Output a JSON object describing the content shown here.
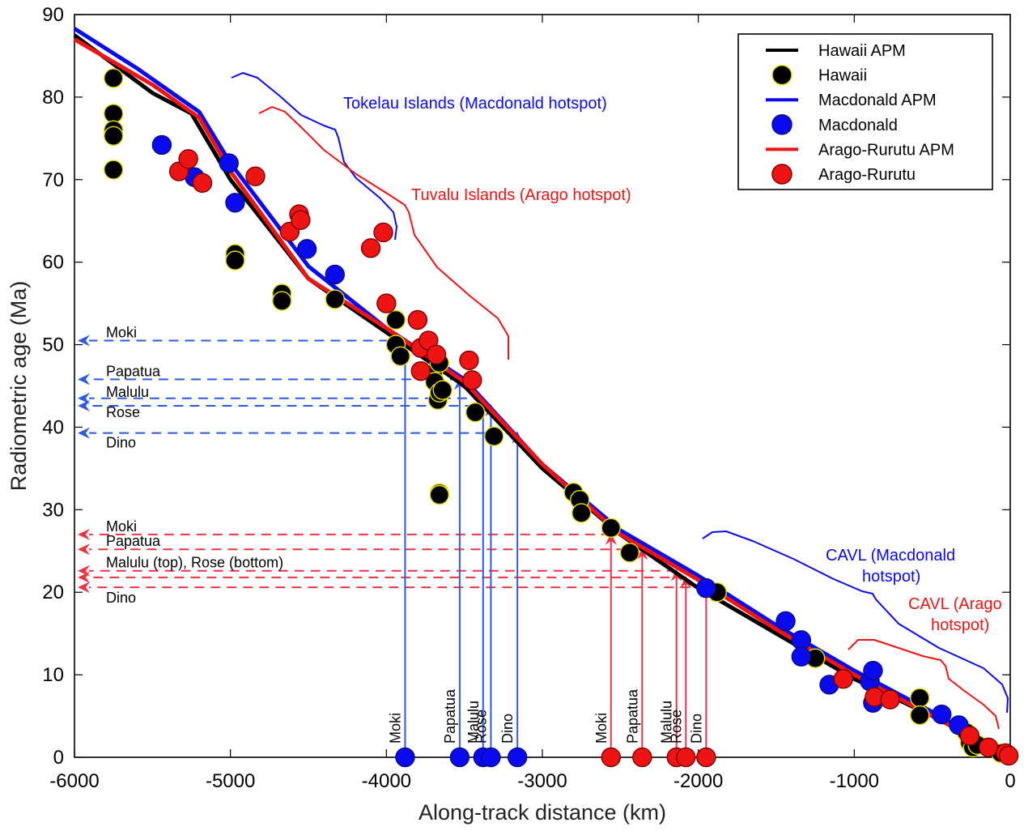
{
  "chart_data": {
    "type": "scatter",
    "xlabel": "Along-track distance (km)",
    "ylabel": "Radiometric age (Ma)",
    "xlim": [
      -6000,
      0
    ],
    "ylim": [
      0,
      90
    ],
    "xticks": [
      -6000,
      -5000,
      -4000,
      -3000,
      -2000,
      -1000,
      0
    ],
    "yticks": [
      0,
      10,
      20,
      30,
      40,
      50,
      60,
      70,
      80,
      90
    ],
    "legend_position": "top-right",
    "colors": {
      "hawaii_line": "#000000",
      "hawaii_marker": "#000000",
      "hawaii_edge": "#e8e000",
      "macdonald": "#0a0aef",
      "macdonald_edge": "#0a0a80",
      "arago": "#ef1414",
      "arago_edge": "#7a0000",
      "blue_annotation": "#2f5be0",
      "red_annotation": "#ef3345"
    },
    "legend": [
      {
        "label": "Hawaii APM",
        "kind": "line",
        "color": "#000000"
      },
      {
        "label": "Hawaii",
        "kind": "marker",
        "color": "#000000",
        "edge": "#e8e000"
      },
      {
        "label": "Macdonald APM",
        "kind": "line",
        "color": "#0a0aef"
      },
      {
        "label": "Macdonald",
        "kind": "marker",
        "color": "#0a0aef",
        "edge": "#0a0a80"
      },
      {
        "label": "Arago-Rurutu APM",
        "kind": "line",
        "color": "#ef1414"
      },
      {
        "label": "Arago-Rurutu",
        "kind": "marker",
        "color": "#ef1414",
        "edge": "#7a0000"
      }
    ],
    "apm_lines": [
      {
        "name": "Hawaii APM",
        "color": "#000000",
        "x": [
          -6000,
          -5500,
          -5250,
          -5000,
          -4500,
          -4000,
          -3500,
          -3000,
          -2500,
          -2000,
          -1500,
          -1000,
          -500,
          0
        ],
        "y": [
          87.5,
          80.5,
          78,
          70,
          58,
          51.5,
          45,
          35,
          27,
          20.5,
          15,
          9.5,
          5,
          0
        ]
      },
      {
        "name": "Macdonald APM",
        "color": "#0a0aef",
        "x": [
          -6000,
          -5600,
          -5200,
          -5000,
          -4500,
          -4000,
          -3500,
          -3000,
          -2500,
          -2000,
          -1500,
          -1000,
          -500,
          0
        ],
        "y": [
          88.3,
          83.5,
          78.2,
          72,
          59.5,
          52,
          45.8,
          35.5,
          27.5,
          22,
          16,
          10.5,
          5.5,
          0
        ]
      },
      {
        "name": "Arago-Rurutu APM",
        "color": "#ef1414",
        "x": [
          -6000,
          -5500,
          -5200,
          -5000,
          -4500,
          -4000,
          -3500,
          -3000,
          -2500,
          -2000,
          -1500,
          -1000,
          -500,
          0
        ],
        "y": [
          87,
          81.5,
          77.5,
          71,
          58,
          52,
          45.5,
          35.5,
          27,
          21.5,
          15.5,
          10,
          5,
          0
        ]
      }
    ],
    "series": [
      {
        "name": "Hawaii",
        "color": "#000000",
        "edge": "#e8e000",
        "points": [
          [
            -5750,
            82.3
          ],
          [
            -5750,
            78
          ],
          [
            -5750,
            76
          ],
          [
            -5750,
            75.3
          ],
          [
            -5750,
            71.2
          ],
          [
            -4970,
            61
          ],
          [
            -4970,
            60.2
          ],
          [
            -4670,
            56.2
          ],
          [
            -4670,
            55.3
          ],
          [
            -4330,
            55.5
          ],
          [
            -3940,
            53
          ],
          [
            -3940,
            50
          ],
          [
            -3910,
            48.6
          ],
          [
            -3700,
            46.5
          ],
          [
            -3690,
            45.5
          ],
          [
            -3660,
            47.8
          ],
          [
            -3670,
            43.3
          ],
          [
            -3660,
            44.2
          ],
          [
            -3640,
            44.5
          ],
          [
            -3430,
            41.8
          ],
          [
            -3310,
            38.9
          ],
          [
            -3660,
            32
          ],
          [
            -3660,
            31.8
          ],
          [
            -2800,
            32.1
          ],
          [
            -2760,
            31.2
          ],
          [
            -2750,
            29.6
          ],
          [
            -2560,
            27.8
          ],
          [
            -2440,
            24.8
          ],
          [
            -1880,
            20
          ],
          [
            -1250,
            12
          ],
          [
            -580,
            7.2
          ],
          [
            -580,
            5.1
          ],
          [
            -280,
            3
          ],
          [
            -260,
            1.8
          ],
          [
            -240,
            1.2
          ],
          [
            -210,
            1.5
          ],
          [
            -60,
            0.5
          ],
          [
            -20,
            0.3
          ]
        ]
      },
      {
        "name": "Macdonald",
        "color": "#0a0aef",
        "edge": "#0a0a80",
        "points": [
          [
            -5440,
            74.2
          ],
          [
            -5230,
            70.3
          ],
          [
            -5010,
            72
          ],
          [
            -4970,
            67.2
          ],
          [
            -4510,
            61.6
          ],
          [
            -4330,
            58.5
          ],
          [
            -1440,
            16.5
          ],
          [
            -1340,
            14.2
          ],
          [
            -1340,
            12.2
          ],
          [
            -1160,
            8.8
          ],
          [
            -900,
            9.2
          ],
          [
            -880,
            10.5
          ],
          [
            -880,
            6.6
          ],
          [
            -440,
            5.2
          ],
          [
            -330,
            3.9
          ],
          [
            -3880,
            0
          ],
          [
            -3530,
            0
          ],
          [
            -3380,
            0
          ],
          [
            -3330,
            0
          ],
          [
            -3160,
            0
          ],
          [
            -1950,
            20.5
          ]
        ]
      },
      {
        "name": "Arago-Rurutu",
        "color": "#ef1414",
        "edge": "#7a0000",
        "points": [
          [
            -5330,
            71
          ],
          [
            -5270,
            72.5
          ],
          [
            -5180,
            69.6
          ],
          [
            -4840,
            70.4
          ],
          [
            -4620,
            63.7
          ],
          [
            -4560,
            65.8
          ],
          [
            -4550,
            65.1
          ],
          [
            -4100,
            61.7
          ],
          [
            -4020,
            63.6
          ],
          [
            -4000,
            55
          ],
          [
            -3800,
            53
          ],
          [
            -3780,
            49.6
          ],
          [
            -3780,
            46.8
          ],
          [
            -3730,
            50.5
          ],
          [
            -3680,
            48.8
          ],
          [
            -3470,
            48.1
          ],
          [
            -3450,
            45.7
          ],
          [
            -1070,
            9.5
          ],
          [
            -870,
            7.3
          ],
          [
            -770,
            7
          ],
          [
            -260,
            2.6
          ],
          [
            -140,
            1.2
          ],
          [
            -30,
            0.5
          ],
          [
            -10,
            0.2
          ],
          [
            -2560,
            0
          ],
          [
            -2360,
            0
          ],
          [
            -2140,
            0
          ],
          [
            -2080,
            0
          ],
          [
            -1950,
            0
          ]
        ]
      }
    ],
    "seamounts": {
      "blue": [
        {
          "name": "Moki",
          "x": -3880,
          "age": 50.5
        },
        {
          "name": "Papatua",
          "x": -3530,
          "age": 45.8
        },
        {
          "name": "Malulu",
          "x": -3380,
          "age": 43.5
        },
        {
          "name": "Rose",
          "x": -3330,
          "age": 42.6
        },
        {
          "name": "Dino",
          "x": -3160,
          "age": 39.3
        }
      ],
      "red": [
        {
          "name": "Moki",
          "x": -2560,
          "age": 27
        },
        {
          "name": "Papatua",
          "x": -2360,
          "age": 25.2
        },
        {
          "name": "Malulu",
          "x": -2140,
          "age": 22.6
        },
        {
          "name": "Rose",
          "x": -2080,
          "age": 21.8
        },
        {
          "name": "Dino",
          "x": -1950,
          "age": 20.6
        }
      ]
    },
    "age_labels": {
      "blue": [
        "Moki",
        "Papatua",
        "Malulu",
        "Rose",
        "Dino"
      ],
      "red": [
        "Moki",
        "Papatua",
        "Malulu (top), Rose (bottom)",
        "Dino"
      ]
    },
    "annotations": [
      {
        "text": "Tokelau Islands (Macdonald hotspot)",
        "color": "#0a0aef"
      },
      {
        "text": "Tuvalu Islands (Arago hotspot)",
        "color": "#ef1414"
      },
      {
        "text": "CAVL (Macdonald",
        "text2": "hotspot)",
        "color": "#0a0aef"
      },
      {
        "text": "CAVL (Arago",
        "text2": "hotspot)",
        "color": "#ef1414"
      }
    ]
  }
}
